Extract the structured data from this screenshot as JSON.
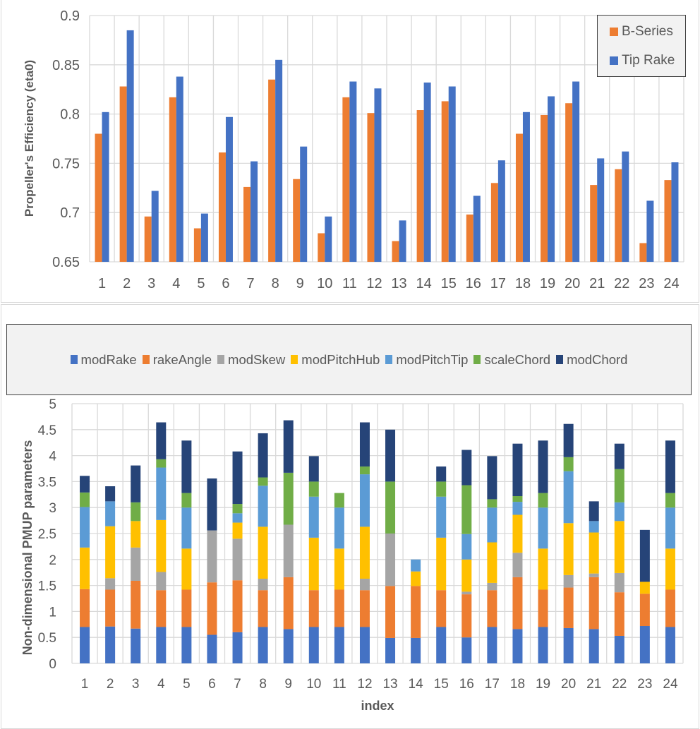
{
  "chart_data": [
    {
      "type": "bar",
      "title": "",
      "xlabel": "",
      "ylabel": "Propeller's Efficiency (eta0)",
      "ylim": [
        0.65,
        0.9
      ],
      "yticks": [
        "0.65",
        "0.7",
        "0.75",
        "0.8",
        "0.85",
        "0.9"
      ],
      "grid": true,
      "legend_position": "top-right",
      "categories": [
        "1",
        "2",
        "3",
        "4",
        "5",
        "6",
        "7",
        "8",
        "9",
        "10",
        "11",
        "12",
        "13",
        "14",
        "15",
        "16",
        "17",
        "18",
        "19",
        "20",
        "21",
        "22",
        "23",
        "24"
      ],
      "series": [
        {
          "name": "B-Series",
          "color": "#ed7d31",
          "values": [
            0.78,
            0.828,
            0.696,
            0.817,
            0.684,
            0.761,
            0.726,
            0.835,
            0.734,
            0.679,
            0.817,
            0.801,
            0.671,
            0.804,
            0.813,
            0.698,
            0.73,
            0.78,
            0.799,
            0.811,
            0.728,
            0.744,
            0.669,
            0.733
          ]
        },
        {
          "name": "Tip Rake",
          "color": "#4472c4",
          "values": [
            0.802,
            0.885,
            0.722,
            0.838,
            0.699,
            0.797,
            0.752,
            0.855,
            0.767,
            0.696,
            0.833,
            0.826,
            0.692,
            0.832,
            0.828,
            0.717,
            0.753,
            0.802,
            0.818,
            0.833,
            0.755,
            0.762,
            0.712,
            0.751
          ]
        }
      ]
    },
    {
      "type": "bar",
      "stacked": true,
      "title": "",
      "xlabel": "index",
      "ylabel": "Non-dimensional PMUP parameters",
      "ylim": [
        0,
        5
      ],
      "yticks": [
        "0",
        "0.5",
        "1",
        "1.5",
        "2",
        "2.5",
        "3",
        "3.5",
        "4",
        "4.5",
        "5"
      ],
      "grid": true,
      "legend_position": "top",
      "categories": [
        "1",
        "2",
        "3",
        "4",
        "5",
        "6",
        "7",
        "8",
        "9",
        "10",
        "11",
        "12",
        "13",
        "14",
        "15",
        "16",
        "17",
        "18",
        "19",
        "20",
        "21",
        "22",
        "23",
        "24"
      ],
      "series": [
        {
          "name": "modRake",
          "color": "#4472c4",
          "values": [
            0.7,
            0.71,
            0.67,
            0.7,
            0.7,
            0.55,
            0.6,
            0.7,
            0.66,
            0.7,
            0.7,
            0.7,
            0.49,
            0.49,
            0.7,
            0.5,
            0.7,
            0.66,
            0.7,
            0.68,
            0.66,
            0.53,
            0.72,
            0.7
          ]
        },
        {
          "name": "rakeAngle",
          "color": "#ed7d31",
          "values": [
            0.73,
            0.71,
            0.92,
            0.71,
            0.72,
            1.01,
            1.0,
            0.71,
            1.0,
            0.71,
            0.72,
            0.71,
            1.0,
            1.0,
            0.71,
            0.83,
            0.71,
            1.0,
            0.72,
            0.78,
            1.0,
            0.84,
            0.62,
            0.72
          ]
        },
        {
          "name": "modSkew",
          "color": "#a5a5a5",
          "values": [
            0,
            0.22,
            0.64,
            0.35,
            0,
            1.0,
            0.8,
            0.22,
            1.01,
            0,
            0,
            0.22,
            1.01,
            0,
            0,
            0.05,
            0.14,
            0.47,
            0,
            0.24,
            0.07,
            0.37,
            0,
            0
          ]
        },
        {
          "name": "modPitchHub",
          "color": "#ffc000",
          "values": [
            0.8,
            1.0,
            0.51,
            1.0,
            0.79,
            0,
            0.31,
            1.0,
            0,
            1.01,
            0.79,
            1.0,
            0,
            0.28,
            1.01,
            0.62,
            0.78,
            0.73,
            0.79,
            1.0,
            0.79,
            1.0,
            0.23,
            0.79
          ]
        },
        {
          "name": "modPitchTip",
          "color": "#5b9bd5",
          "values": [
            0.78,
            0.48,
            0,
            1.01,
            0.79,
            0,
            0.18,
            0.79,
            0,
            0.79,
            0.79,
            1.01,
            0,
            0.23,
            0.79,
            0.49,
            0.67,
            0.25,
            0.79,
            1.0,
            0.22,
            0.36,
            0,
            0.79
          ]
        },
        {
          "name": "scaleChord",
          "color": "#70ad47",
          "values": [
            0.28,
            0,
            0.36,
            0.16,
            0.28,
            0,
            0.18,
            0.16,
            1.0,
            0.29,
            0.28,
            0.15,
            1.0,
            0,
            0.29,
            0.94,
            0.16,
            0.11,
            0.28,
            0.27,
            0,
            0.64,
            0,
            0.28
          ]
        },
        {
          "name": "modChord",
          "color": "#264478",
          "values": [
            0.32,
            0.29,
            0.71,
            0.71,
            1.01,
            1.0,
            1.01,
            0.85,
            1.01,
            0.49,
            0,
            0.85,
            1.0,
            0,
            0.29,
            0.68,
            0.83,
            1.01,
            1.01,
            0.64,
            0.38,
            0.49,
            1.0,
            1.01
          ]
        }
      ]
    }
  ]
}
